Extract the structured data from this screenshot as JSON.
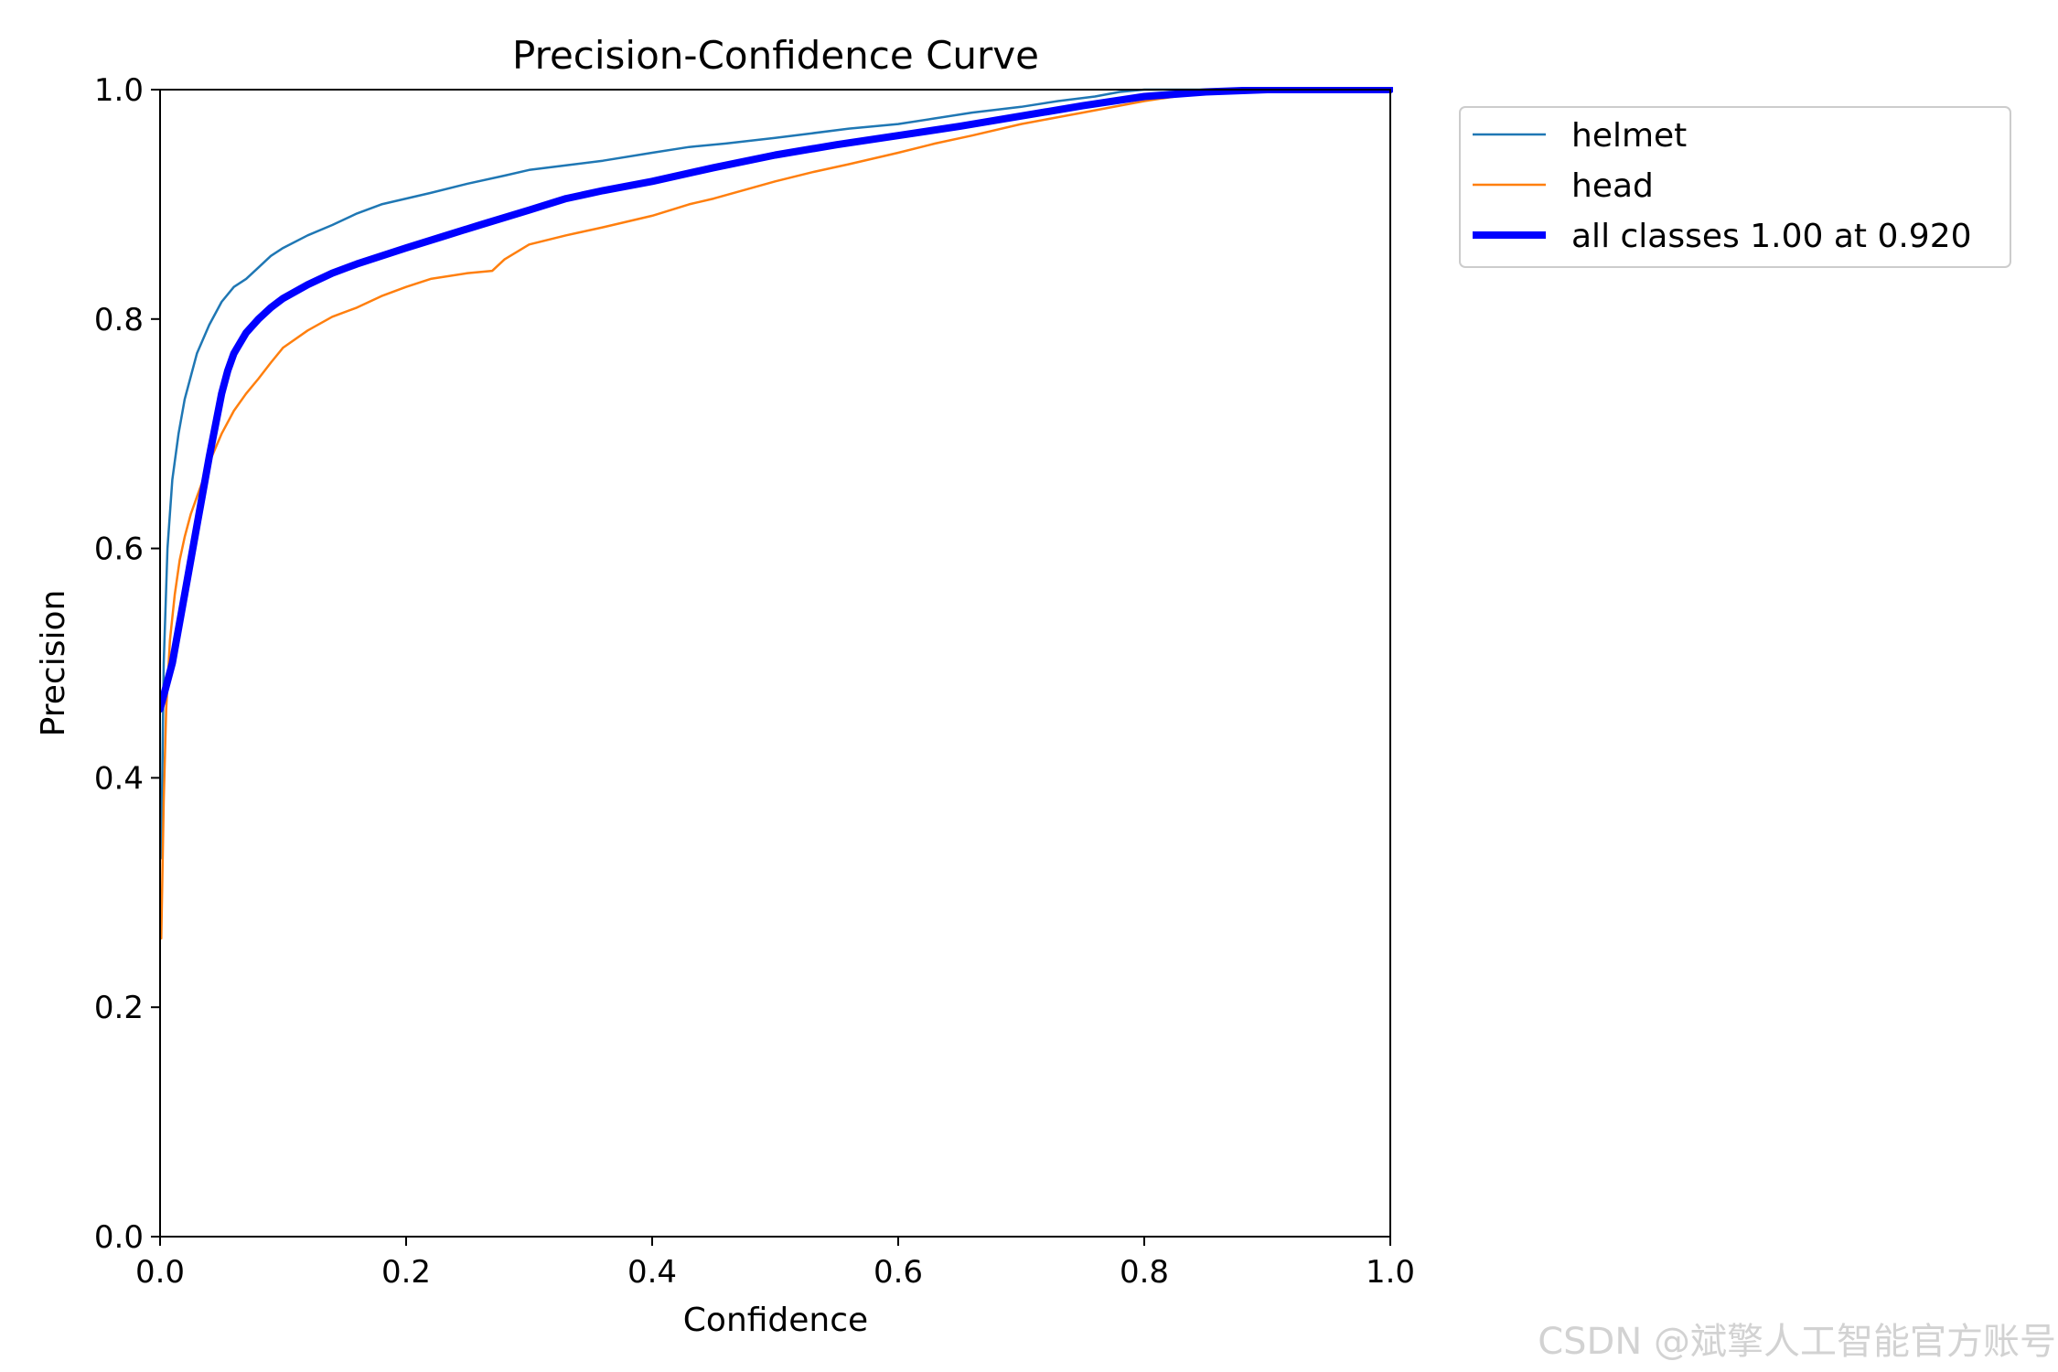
{
  "chart_data": {
    "type": "line",
    "title": "Precision-Confidence Curve",
    "xlabel": "Confidence",
    "ylabel": "Precision",
    "xlim": [
      0,
      1
    ],
    "ylim": [
      0,
      1
    ],
    "xticks": [
      "0.0",
      "0.2",
      "0.4",
      "0.6",
      "0.8",
      "1.0"
    ],
    "yticks": [
      "0.0",
      "0.2",
      "0.4",
      "0.6",
      "0.8",
      "1.0"
    ],
    "grid": false,
    "legend_position": "outside-upper-right",
    "series": [
      {
        "name": "helmet",
        "color": "#1f77b4",
        "width": "thin",
        "x": [
          0.001,
          0.003,
          0.006,
          0.01,
          0.015,
          0.02,
          0.025,
          0.03,
          0.04,
          0.05,
          0.06,
          0.07,
          0.08,
          0.09,
          0.1,
          0.12,
          0.14,
          0.16,
          0.18,
          0.2,
          0.22,
          0.25,
          0.28,
          0.3,
          0.33,
          0.36,
          0.4,
          0.43,
          0.46,
          0.5,
          0.53,
          0.56,
          0.6,
          0.63,
          0.66,
          0.7,
          0.73,
          0.76,
          0.78,
          0.8,
          0.85,
          0.9,
          0.95,
          1.0
        ],
        "y": [
          0.33,
          0.5,
          0.6,
          0.66,
          0.7,
          0.73,
          0.75,
          0.77,
          0.795,
          0.815,
          0.828,
          0.835,
          0.845,
          0.855,
          0.862,
          0.873,
          0.882,
          0.892,
          0.9,
          0.905,
          0.91,
          0.918,
          0.925,
          0.93,
          0.934,
          0.938,
          0.945,
          0.95,
          0.953,
          0.958,
          0.962,
          0.966,
          0.97,
          0.975,
          0.98,
          0.985,
          0.99,
          0.994,
          0.998,
          1.0,
          1.0,
          1.0,
          1.0,
          1.0
        ]
      },
      {
        "name": "head",
        "color": "#ff7f0e",
        "width": "thin",
        "x": [
          0.001,
          0.003,
          0.005,
          0.008,
          0.012,
          0.016,
          0.02,
          0.025,
          0.03,
          0.035,
          0.04,
          0.05,
          0.06,
          0.07,
          0.08,
          0.09,
          0.1,
          0.12,
          0.14,
          0.16,
          0.18,
          0.2,
          0.22,
          0.25,
          0.27,
          0.28,
          0.3,
          0.33,
          0.36,
          0.4,
          0.43,
          0.45,
          0.5,
          0.53,
          0.56,
          0.6,
          0.63,
          0.66,
          0.7,
          0.75,
          0.8,
          0.85,
          0.9,
          0.95,
          1.0
        ],
        "y": [
          0.26,
          0.38,
          0.46,
          0.52,
          0.56,
          0.59,
          0.61,
          0.63,
          0.645,
          0.66,
          0.675,
          0.7,
          0.72,
          0.735,
          0.748,
          0.762,
          0.775,
          0.79,
          0.802,
          0.81,
          0.82,
          0.828,
          0.835,
          0.84,
          0.842,
          0.852,
          0.865,
          0.873,
          0.88,
          0.89,
          0.9,
          0.905,
          0.92,
          0.928,
          0.935,
          0.945,
          0.953,
          0.96,
          0.97,
          0.98,
          0.99,
          0.998,
          1.0,
          1.0,
          1.0
        ]
      },
      {
        "name": "all classes 1.00 at 0.920",
        "color": "#0000ff",
        "width": "thick",
        "x": [
          0.0,
          0.01,
          0.02,
          0.03,
          0.04,
          0.05,
          0.055,
          0.06,
          0.07,
          0.08,
          0.09,
          0.1,
          0.12,
          0.14,
          0.16,
          0.18,
          0.2,
          0.23,
          0.26,
          0.3,
          0.33,
          0.36,
          0.4,
          0.45,
          0.5,
          0.55,
          0.6,
          0.65,
          0.7,
          0.75,
          0.8,
          0.85,
          0.9,
          0.95,
          1.0
        ],
        "y": [
          0.46,
          0.5,
          0.56,
          0.62,
          0.68,
          0.735,
          0.755,
          0.77,
          0.788,
          0.8,
          0.81,
          0.818,
          0.83,
          0.84,
          0.848,
          0.855,
          0.862,
          0.872,
          0.882,
          0.895,
          0.905,
          0.912,
          0.92,
          0.932,
          0.943,
          0.952,
          0.96,
          0.968,
          0.977,
          0.986,
          0.994,
          0.998,
          1.0,
          1.0,
          1.0
        ]
      }
    ]
  },
  "watermark": "CSDN @斌擎人工智能官方账号"
}
